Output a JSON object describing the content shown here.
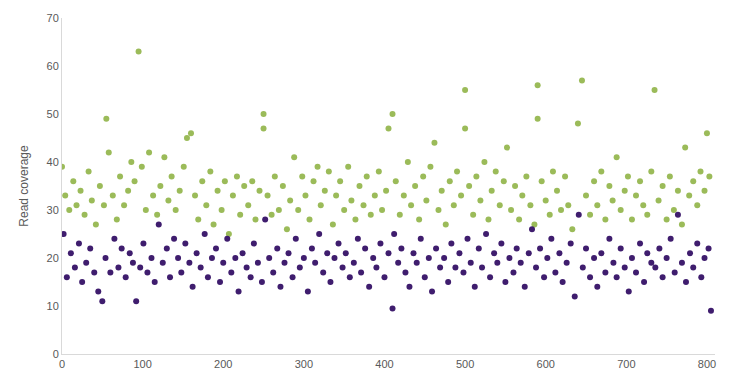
{
  "chart_data": {
    "type": "scatter",
    "ylabel": "Read coverage",
    "xlim": [
      0,
      810
    ],
    "xticks": [
      0,
      100,
      200,
      300,
      400,
      500,
      600,
      700,
      800
    ],
    "ylim": [
      0,
      70
    ],
    "yticks": [
      0,
      10,
      20,
      30,
      40,
      50,
      60,
      70
    ],
    "grid": false,
    "series": [
      {
        "color": "#9bbb59",
        "x": [
          0,
          4,
          9,
          14,
          18,
          23,
          28,
          33,
          37,
          42,
          47,
          52,
          55,
          58,
          63,
          68,
          72,
          77,
          82,
          86,
          90,
          95,
          99,
          104,
          108,
          113,
          118,
          122,
          127,
          132,
          136,
          141,
          146,
          151,
          155,
          160,
          165,
          169,
          174,
          179,
          184,
          188,
          193,
          198,
          202,
          207,
          212,
          217,
          221,
          226,
          231,
          236,
          240,
          245,
          250,
          250,
          255,
          260,
          264,
          269,
          274,
          279,
          283,
          288,
          293,
          298,
          302,
          307,
          312,
          317,
          321,
          326,
          331,
          336,
          340,
          345,
          350,
          355,
          359,
          364,
          369,
          374,
          378,
          383,
          388,
          393,
          397,
          402,
          405,
          410,
          414,
          419,
          424,
          429,
          433,
          438,
          443,
          448,
          452,
          457,
          462,
          467,
          471,
          476,
          481,
          486,
          490,
          495,
          500,
          500,
          505,
          510,
          514,
          519,
          524,
          529,
          533,
          538,
          543,
          548,
          552,
          557,
          562,
          567,
          571,
          576,
          581,
          586,
          590,
          590,
          595,
          600,
          605,
          609,
          614,
          619,
          624,
          628,
          633,
          640,
          645,
          650,
          655,
          660,
          664,
          669,
          674,
          679,
          683,
          688,
          693,
          698,
          702,
          707,
          712,
          717,
          721,
          726,
          731,
          735,
          740,
          745,
          750,
          754,
          759,
          764,
          769,
          773,
          778,
          783,
          788,
          792,
          797,
          800,
          803
        ],
        "values": [
          39,
          33,
          30,
          36,
          31,
          34,
          29,
          38,
          32,
          27,
          35,
          31,
          49,
          42,
          33,
          28,
          37,
          31,
          34,
          40,
          36,
          63,
          39,
          30,
          42,
          33,
          29,
          35,
          41,
          32,
          37,
          30,
          34,
          39,
          45,
          46,
          33,
          28,
          36,
          31,
          38,
          27,
          34,
          30,
          36,
          25,
          33,
          37,
          29,
          35,
          31,
          36,
          28,
          34,
          50,
          47,
          33,
          29,
          37,
          30,
          35,
          26,
          32,
          41,
          30,
          37,
          33,
          28,
          36,
          39,
          31,
          34,
          38,
          27,
          33,
          36,
          30,
          39,
          32,
          28,
          35,
          31,
          37,
          29,
          33,
          38,
          30,
          34,
          47,
          50,
          36,
          29,
          33,
          40,
          31,
          35,
          28,
          37,
          32,
          39,
          44,
          30,
          34,
          27,
          36,
          31,
          38,
          33,
          55,
          47,
          35,
          29,
          37,
          32,
          40,
          28,
          34,
          38,
          31,
          36,
          43,
          30,
          35,
          28,
          33,
          37,
          31,
          27,
          56,
          49,
          36,
          32,
          29,
          38,
          34,
          30,
          37,
          31,
          26,
          48,
          57,
          33,
          29,
          36,
          31,
          38,
          28,
          35,
          32,
          41,
          30,
          34,
          37,
          28,
          33,
          36,
          31,
          29,
          38,
          55,
          32,
          35,
          28,
          37,
          30,
          34,
          27,
          43,
          33,
          36,
          31,
          38,
          34,
          46,
          37
        ]
      },
      {
        "color": "#3f1d6e",
        "x": [
          2,
          6,
          11,
          16,
          21,
          25,
          30,
          35,
          40,
          45,
          50,
          54,
          60,
          65,
          70,
          74,
          79,
          84,
          88,
          92,
          97,
          101,
          106,
          111,
          115,
          120,
          125,
          130,
          134,
          139,
          144,
          148,
          153,
          158,
          162,
          167,
          172,
          177,
          181,
          186,
          191,
          196,
          200,
          205,
          210,
          215,
          219,
          224,
          229,
          234,
          238,
          243,
          248,
          252,
          257,
          262,
          267,
          271,
          276,
          281,
          286,
          290,
          295,
          300,
          305,
          310,
          314,
          319,
          324,
          329,
          333,
          338,
          343,
          348,
          352,
          357,
          362,
          367,
          371,
          376,
          381,
          386,
          390,
          395,
          400,
          405,
          410,
          412,
          417,
          421,
          426,
          431,
          436,
          440,
          445,
          450,
          455,
          459,
          464,
          469,
          474,
          479,
          483,
          488,
          493,
          498,
          503,
          507,
          512,
          517,
          521,
          526,
          531,
          536,
          540,
          545,
          550,
          555,
          560,
          564,
          569,
          574,
          579,
          583,
          588,
          593,
          598,
          602,
          607,
          612,
          617,
          621,
          626,
          631,
          636,
          641,
          646,
          650,
          655,
          660,
          664,
          669,
          674,
          679,
          684,
          688,
          693,
          698,
          703,
          707,
          712,
          717,
          722,
          726,
          731,
          736,
          741,
          745,
          750,
          755,
          760,
          764,
          769,
          774,
          779,
          783,
          788,
          793,
          797,
          802,
          805
        ],
        "values": [
          25,
          16,
          21,
          18,
          23,
          15,
          19,
          22,
          17,
          13,
          11,
          20,
          17,
          24,
          18,
          22,
          16,
          21,
          19,
          11,
          18,
          23,
          17,
          20,
          15,
          27,
          19,
          22,
          16,
          24,
          20,
          17,
          23,
          19,
          14,
          21,
          18,
          25,
          16,
          20,
          22,
          15,
          19,
          24,
          17,
          20,
          13,
          21,
          18,
          16,
          23,
          19,
          15,
          28,
          20,
          17,
          22,
          14,
          19,
          21,
          16,
          24,
          18,
          20,
          13,
          22,
          19,
          25,
          17,
          21,
          15,
          20,
          23,
          18,
          21,
          16,
          19,
          24,
          17,
          22,
          14,
          20,
          18,
          23,
          16,
          21,
          9.5,
          25,
          19,
          22,
          17,
          14,
          21,
          19,
          24,
          16,
          20,
          13,
          22,
          18,
          20,
          15,
          23,
          18,
          21,
          17,
          24,
          19,
          14,
          22,
          18,
          25,
          16,
          21,
          19,
          23,
          15,
          20,
          17,
          22,
          19,
          14,
          21,
          26,
          18,
          22,
          16,
          20,
          24,
          17,
          21,
          15,
          19,
          23,
          12,
          29,
          18,
          22,
          16,
          20,
          14,
          21,
          17,
          24,
          19,
          16,
          22,
          18,
          13,
          20,
          17,
          23,
          15,
          21,
          19,
          18,
          22,
          16,
          20,
          24,
          17,
          29,
          19,
          15,
          21,
          18,
          23,
          16,
          20,
          22,
          9
        ]
      }
    ]
  }
}
